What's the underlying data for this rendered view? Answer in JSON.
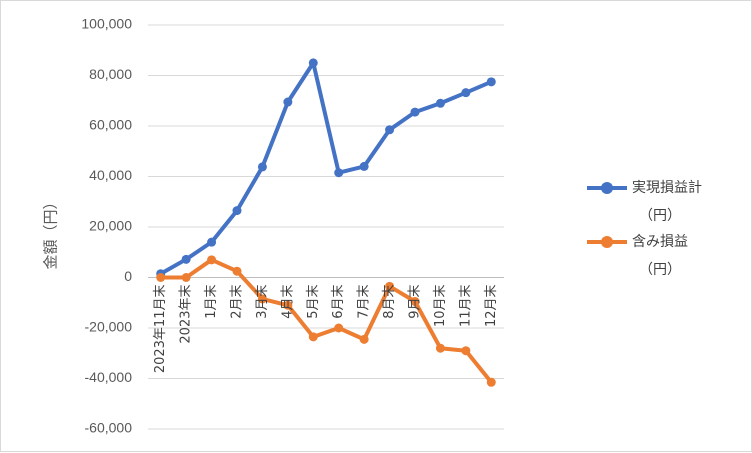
{
  "chart_data": {
    "type": "line",
    "ylabel": "金額（円）",
    "ylim": [
      -60000,
      100000
    ],
    "y_ticks": [
      100000,
      80000,
      60000,
      40000,
      20000,
      0,
      -20000,
      -40000,
      -60000
    ],
    "y_tick_labels": [
      "100,000",
      "80,000",
      "60,000",
      "40,000",
      "20,000",
      "0",
      "-20,000",
      "-40,000",
      "-60,000"
    ],
    "categories": [
      "2023年11月末",
      "2023年末",
      "1月末",
      "2月末",
      "3月末",
      "4月末",
      "5月末",
      "6月末",
      "7月末",
      "8月末",
      "9月末",
      "10月末",
      "11月末",
      "12月末"
    ],
    "grid": true,
    "legend_position": "right",
    "series": [
      {
        "name": "実現損益計（円）",
        "legend_lines": [
          "実現損益計",
          "（円）"
        ],
        "color": "#4472C4",
        "values": [
          1500,
          7200,
          14000,
          26500,
          43800,
          69500,
          85000,
          41500,
          44000,
          58500,
          65500,
          69000,
          73200,
          77500
        ]
      },
      {
        "name": "含み損益（円）",
        "legend_lines": [
          "含み損益",
          "（円）"
        ],
        "color": "#ED7D31",
        "values": [
          0,
          0,
          7000,
          2500,
          -8500,
          -11000,
          -23500,
          -20000,
          -24500,
          -3500,
          -9500,
          -28000,
          -29000,
          -41500
        ]
      }
    ]
  }
}
